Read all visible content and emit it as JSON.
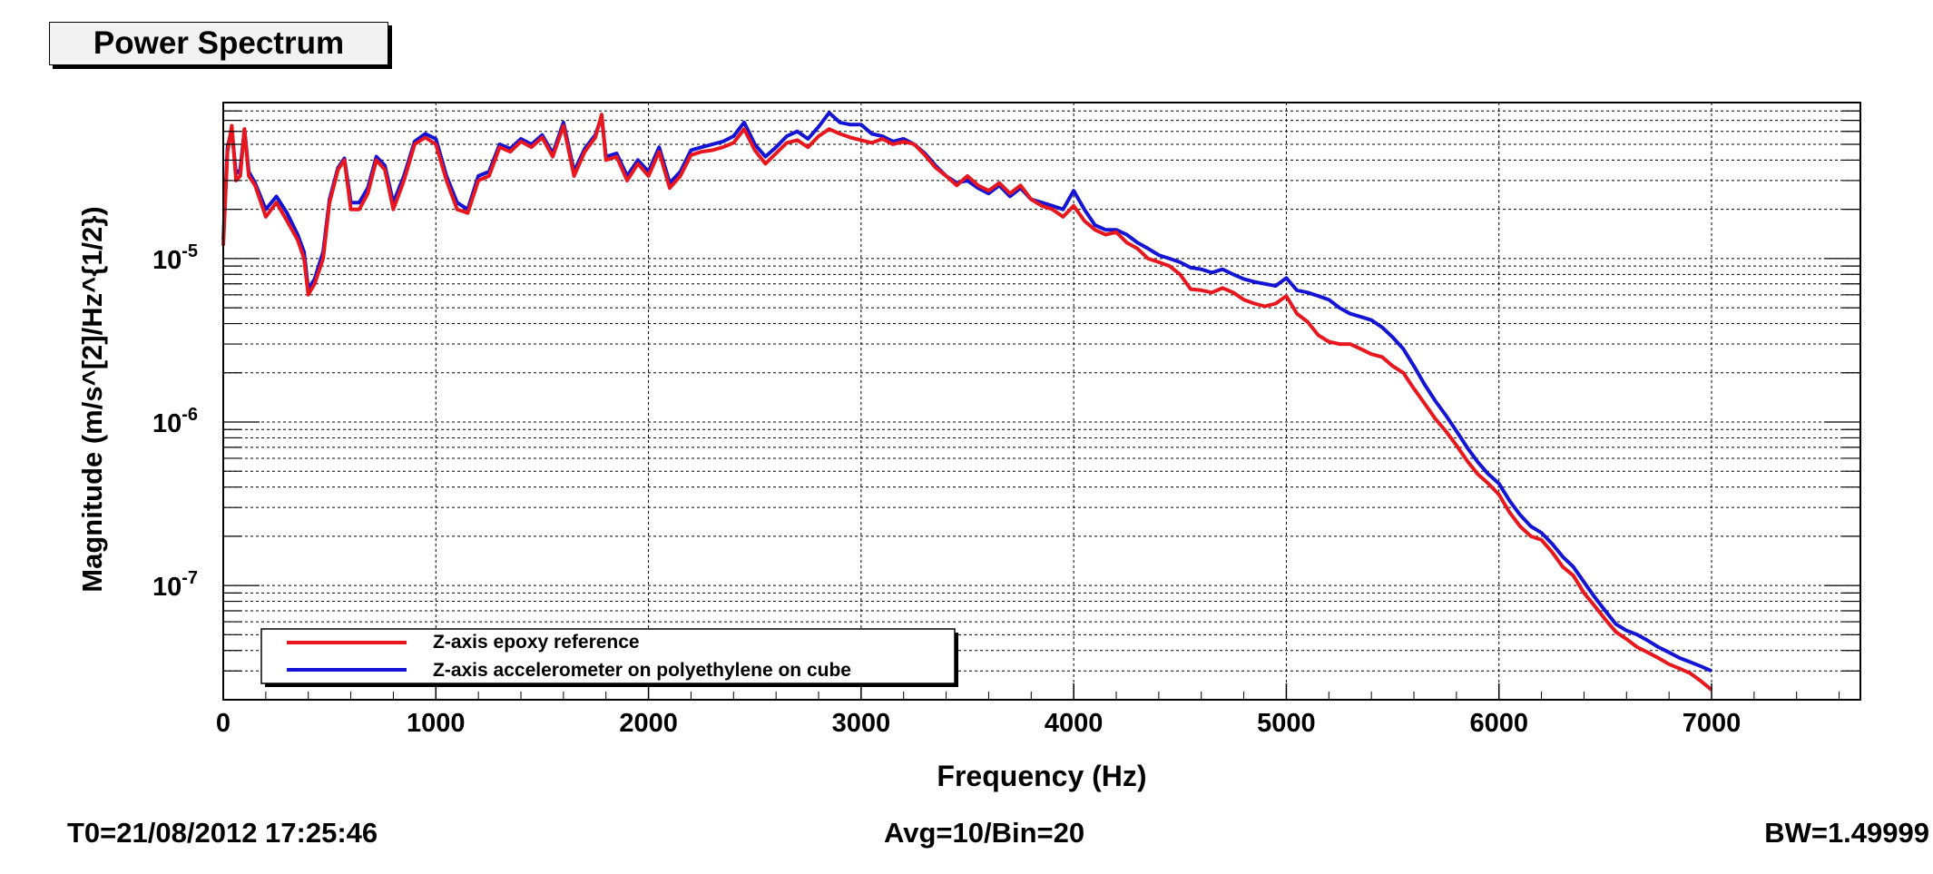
{
  "title": "Power Spectrum",
  "footer": {
    "t0": "T0=21/08/2012 17:25:46",
    "avg": "Avg=10/Bin=20",
    "bw": "BW=1.49999"
  },
  "chart_data": {
    "type": "line",
    "title": "Power Spectrum",
    "xlabel": "Frequency (Hz)",
    "ylabel": "Magnitude (m/s^[2]/Hz^{1/2})",
    "xlim": [
      0,
      7700
    ],
    "ylim": [
      2e-08,
      9e-05
    ],
    "y_scale": "log",
    "grid": true,
    "legend_position": "bottom-left",
    "x_ticks": [
      "0",
      "1000",
      "2000",
      "3000",
      "4000",
      "5000",
      "6000",
      "7000"
    ],
    "y_ticks": [
      {
        "base": "10",
        "exp": "-7",
        "value": 1e-07
      },
      {
        "base": "10",
        "exp": "-6",
        "value": 1e-06
      },
      {
        "base": "10",
        "exp": "-5",
        "value": 1e-05
      }
    ],
    "series": [
      {
        "name": "Z-axis epoxy reference",
        "color": "#e8161d",
        "points": [
          [
            0,
            1.2e-05
          ],
          [
            20,
            4.5e-05
          ],
          [
            40,
            6.5e-05
          ],
          [
            60,
            3e-05
          ],
          [
            80,
            3.2e-05
          ],
          [
            100,
            6.2e-05
          ],
          [
            120,
            3.2e-05
          ],
          [
            150,
            2.8e-05
          ],
          [
            200,
            1.8e-05
          ],
          [
            250,
            2.2e-05
          ],
          [
            300,
            1.7e-05
          ],
          [
            350,
            1.3e-05
          ],
          [
            380,
            1e-05
          ],
          [
            400,
            6e-06
          ],
          [
            430,
            7e-06
          ],
          [
            470,
            1e-05
          ],
          [
            500,
            2.2e-05
          ],
          [
            540,
            3.5e-05
          ],
          [
            570,
            4e-05
          ],
          [
            600,
            2e-05
          ],
          [
            640,
            2e-05
          ],
          [
            680,
            2.5e-05
          ],
          [
            720,
            4e-05
          ],
          [
            760,
            3.5e-05
          ],
          [
            800,
            2e-05
          ],
          [
            850,
            3e-05
          ],
          [
            900,
            5e-05
          ],
          [
            950,
            5.5e-05
          ],
          [
            1000,
            5e-05
          ],
          [
            1050,
            3e-05
          ],
          [
            1100,
            2e-05
          ],
          [
            1150,
            1.9e-05
          ],
          [
            1200,
            3e-05
          ],
          [
            1250,
            3.2e-05
          ],
          [
            1300,
            4.8e-05
          ],
          [
            1350,
            4.5e-05
          ],
          [
            1400,
            5.2e-05
          ],
          [
            1450,
            4.8e-05
          ],
          [
            1500,
            5.5e-05
          ],
          [
            1550,
            4.2e-05
          ],
          [
            1600,
            6.5e-05
          ],
          [
            1650,
            3.2e-05
          ],
          [
            1700,
            4.5e-05
          ],
          [
            1750,
            5.5e-05
          ],
          [
            1780,
            7.6e-05
          ],
          [
            1800,
            4e-05
          ],
          [
            1850,
            4.2e-05
          ],
          [
            1900,
            3e-05
          ],
          [
            1950,
            3.8e-05
          ],
          [
            2000,
            3.2e-05
          ],
          [
            2050,
            4.5e-05
          ],
          [
            2100,
            2.7e-05
          ],
          [
            2150,
            3.2e-05
          ],
          [
            2200,
            4.3e-05
          ],
          [
            2250,
            4.5e-05
          ],
          [
            2300,
            4.6e-05
          ],
          [
            2350,
            4.8e-05
          ],
          [
            2400,
            5.1e-05
          ],
          [
            2450,
            6.2e-05
          ],
          [
            2500,
            4.6e-05
          ],
          [
            2550,
            3.8e-05
          ],
          [
            2600,
            4.4e-05
          ],
          [
            2650,
            5.1e-05
          ],
          [
            2700,
            5.3e-05
          ],
          [
            2750,
            4.8e-05
          ],
          [
            2800,
            5.6e-05
          ],
          [
            2850,
            6.2e-05
          ],
          [
            2900,
            5.8e-05
          ],
          [
            2950,
            5.5e-05
          ],
          [
            3000,
            5.3e-05
          ],
          [
            3050,
            5.1e-05
          ],
          [
            3100,
            5.4e-05
          ],
          [
            3150,
            5e-05
          ],
          [
            3200,
            5.2e-05
          ],
          [
            3250,
            5e-05
          ],
          [
            3300,
            4.3e-05
          ],
          [
            3350,
            3.6e-05
          ],
          [
            3400,
            3.2e-05
          ],
          [
            3450,
            2.8e-05
          ],
          [
            3500,
            3.2e-05
          ],
          [
            3550,
            2.8e-05
          ],
          [
            3600,
            2.6e-05
          ],
          [
            3650,
            2.9e-05
          ],
          [
            3700,
            2.5e-05
          ],
          [
            3750,
            2.8e-05
          ],
          [
            3800,
            2.3e-05
          ],
          [
            3850,
            2.1e-05
          ],
          [
            3900,
            2e-05
          ],
          [
            3950,
            1.8e-05
          ],
          [
            4000,
            2.1e-05
          ],
          [
            4050,
            1.7e-05
          ],
          [
            4100,
            1.5e-05
          ],
          [
            4150,
            1.4e-05
          ],
          [
            4200,
            1.45e-05
          ],
          [
            4250,
            1.25e-05
          ],
          [
            4300,
            1.15e-05
          ],
          [
            4350,
            1e-05
          ],
          [
            4400,
            9.5e-06
          ],
          [
            4450,
            9e-06
          ],
          [
            4500,
            8e-06
          ],
          [
            4550,
            6.5e-06
          ],
          [
            4600,
            6.4e-06
          ],
          [
            4650,
            6.2e-06
          ],
          [
            4700,
            6.6e-06
          ],
          [
            4750,
            6.2e-06
          ],
          [
            4800,
            5.6e-06
          ],
          [
            4850,
            5.3e-06
          ],
          [
            4900,
            5.1e-06
          ],
          [
            4950,
            5.3e-06
          ],
          [
            5000,
            5.9e-06
          ],
          [
            5050,
            4.6e-06
          ],
          [
            5100,
            4.1e-06
          ],
          [
            5150,
            3.4e-06
          ],
          [
            5200,
            3.1e-06
          ],
          [
            5250,
            3e-06
          ],
          [
            5300,
            3e-06
          ],
          [
            5350,
            2.8e-06
          ],
          [
            5400,
            2.6e-06
          ],
          [
            5450,
            2.5e-06
          ],
          [
            5500,
            2.2e-06
          ],
          [
            5550,
            2e-06
          ],
          [
            5600,
            1.6e-06
          ],
          [
            5650,
            1.3e-06
          ],
          [
            5700,
            1.05e-06
          ],
          [
            5750,
            8.8e-07
          ],
          [
            5800,
            7.2e-07
          ],
          [
            5850,
            5.8e-07
          ],
          [
            5900,
            4.8e-07
          ],
          [
            5950,
            4.2e-07
          ],
          [
            6000,
            3.6e-07
          ],
          [
            6050,
            2.8e-07
          ],
          [
            6100,
            2.3e-07
          ],
          [
            6150,
            2e-07
          ],
          [
            6200,
            1.9e-07
          ],
          [
            6250,
            1.6e-07
          ],
          [
            6300,
            1.3e-07
          ],
          [
            6350,
            1.15e-07
          ],
          [
            6400,
            9e-08
          ],
          [
            6450,
            7.5e-08
          ],
          [
            6500,
            6.2e-08
          ],
          [
            6550,
            5.2e-08
          ],
          [
            6600,
            4.7e-08
          ],
          [
            6650,
            4.2e-08
          ],
          [
            6700,
            3.9e-08
          ],
          [
            6750,
            3.6e-08
          ],
          [
            6800,
            3.3e-08
          ],
          [
            6850,
            3.1e-08
          ],
          [
            6900,
            2.9e-08
          ],
          [
            6950,
            2.6e-08
          ],
          [
            7000,
            2.3e-08
          ]
        ]
      },
      {
        "name": "Z-axis accelerometer on polyethylene on cube",
        "color": "#1414d4",
        "points": [
          [
            0,
            1.3e-05
          ],
          [
            20,
            4.8e-05
          ],
          [
            40,
            6.2e-05
          ],
          [
            60,
            3.3e-05
          ],
          [
            80,
            3.5e-05
          ],
          [
            100,
            6.2e-05
          ],
          [
            120,
            3.4e-05
          ],
          [
            150,
            2.9e-05
          ],
          [
            200,
            2e-05
          ],
          [
            250,
            2.4e-05
          ],
          [
            300,
            1.9e-05
          ],
          [
            350,
            1.4e-05
          ],
          [
            380,
            1.1e-05
          ],
          [
            400,
            6.5e-06
          ],
          [
            430,
            7.5e-06
          ],
          [
            470,
            1.1e-05
          ],
          [
            500,
            2.3e-05
          ],
          [
            540,
            3.6e-05
          ],
          [
            570,
            4.1e-05
          ],
          [
            600,
            2.2e-05
          ],
          [
            640,
            2.2e-05
          ],
          [
            680,
            2.7e-05
          ],
          [
            720,
            4.2e-05
          ],
          [
            760,
            3.7e-05
          ],
          [
            800,
            2.2e-05
          ],
          [
            850,
            3.2e-05
          ],
          [
            900,
            5.2e-05
          ],
          [
            950,
            5.8e-05
          ],
          [
            1000,
            5.4e-05
          ],
          [
            1050,
            3.2e-05
          ],
          [
            1100,
            2.2e-05
          ],
          [
            1150,
            2e-05
          ],
          [
            1200,
            3.2e-05
          ],
          [
            1250,
            3.4e-05
          ],
          [
            1300,
            5e-05
          ],
          [
            1350,
            4.7e-05
          ],
          [
            1400,
            5.4e-05
          ],
          [
            1450,
            5e-05
          ],
          [
            1500,
            5.7e-05
          ],
          [
            1550,
            4.4e-05
          ],
          [
            1600,
            6.8e-05
          ],
          [
            1650,
            3.4e-05
          ],
          [
            1700,
            4.7e-05
          ],
          [
            1750,
            5.7e-05
          ],
          [
            1780,
            7.4e-05
          ],
          [
            1800,
            4.2e-05
          ],
          [
            1850,
            4.4e-05
          ],
          [
            1900,
            3.2e-05
          ],
          [
            1950,
            4e-05
          ],
          [
            2000,
            3.4e-05
          ],
          [
            2050,
            4.8e-05
          ],
          [
            2100,
            2.9e-05
          ],
          [
            2150,
            3.4e-05
          ],
          [
            2200,
            4.6e-05
          ],
          [
            2250,
            4.8e-05
          ],
          [
            2300,
            5e-05
          ],
          [
            2350,
            5.2e-05
          ],
          [
            2400,
            5.6e-05
          ],
          [
            2450,
            6.8e-05
          ],
          [
            2500,
            5e-05
          ],
          [
            2550,
            4.2e-05
          ],
          [
            2600,
            4.8e-05
          ],
          [
            2650,
            5.6e-05
          ],
          [
            2700,
            6e-05
          ],
          [
            2750,
            5.4e-05
          ],
          [
            2800,
            6.4e-05
          ],
          [
            2850,
            7.8e-05
          ],
          [
            2900,
            6.8e-05
          ],
          [
            2950,
            6.6e-05
          ],
          [
            3000,
            6.6e-05
          ],
          [
            3050,
            5.8e-05
          ],
          [
            3100,
            5.6e-05
          ],
          [
            3150,
            5.2e-05
          ],
          [
            3200,
            5.4e-05
          ],
          [
            3250,
            5e-05
          ],
          [
            3300,
            4.4e-05
          ],
          [
            3350,
            3.7e-05
          ],
          [
            3400,
            3.2e-05
          ],
          [
            3450,
            2.9e-05
          ],
          [
            3500,
            3e-05
          ],
          [
            3550,
            2.7e-05
          ],
          [
            3600,
            2.5e-05
          ],
          [
            3650,
            2.8e-05
          ],
          [
            3700,
            2.4e-05
          ],
          [
            3750,
            2.7e-05
          ],
          [
            3800,
            2.3e-05
          ],
          [
            3850,
            2.2e-05
          ],
          [
            3900,
            2.1e-05
          ],
          [
            3950,
            2e-05
          ],
          [
            4000,
            2.6e-05
          ],
          [
            4050,
            2e-05
          ],
          [
            4100,
            1.6e-05
          ],
          [
            4150,
            1.5e-05
          ],
          [
            4200,
            1.5e-05
          ],
          [
            4250,
            1.4e-05
          ],
          [
            4300,
            1.25e-05
          ],
          [
            4350,
            1.15e-05
          ],
          [
            4400,
            1.05e-05
          ],
          [
            4450,
            1e-05
          ],
          [
            4500,
            9.5e-06
          ],
          [
            4550,
            8.8e-06
          ],
          [
            4600,
            8.6e-06
          ],
          [
            4650,
            8.2e-06
          ],
          [
            4700,
            8.6e-06
          ],
          [
            4750,
            8e-06
          ],
          [
            4800,
            7.5e-06
          ],
          [
            4850,
            7.2e-06
          ],
          [
            4900,
            7e-06
          ],
          [
            4950,
            6.8e-06
          ],
          [
            5000,
            7.6e-06
          ],
          [
            5050,
            6.4e-06
          ],
          [
            5100,
            6.2e-06
          ],
          [
            5150,
            5.9e-06
          ],
          [
            5200,
            5.6e-06
          ],
          [
            5250,
            5e-06
          ],
          [
            5300,
            4.6e-06
          ],
          [
            5350,
            4.4e-06
          ],
          [
            5400,
            4.2e-06
          ],
          [
            5450,
            3.8e-06
          ],
          [
            5500,
            3.3e-06
          ],
          [
            5550,
            2.8e-06
          ],
          [
            5600,
            2.2e-06
          ],
          [
            5650,
            1.7e-06
          ],
          [
            5700,
            1.35e-06
          ],
          [
            5750,
            1.1e-06
          ],
          [
            5800,
            8.8e-07
          ],
          [
            5850,
            7e-07
          ],
          [
            5900,
            5.7e-07
          ],
          [
            5950,
            4.8e-07
          ],
          [
            6000,
            4.2e-07
          ],
          [
            6050,
            3.3e-07
          ],
          [
            6100,
            2.7e-07
          ],
          [
            6150,
            2.3e-07
          ],
          [
            6200,
            2.1e-07
          ],
          [
            6250,
            1.8e-07
          ],
          [
            6300,
            1.5e-07
          ],
          [
            6350,
            1.3e-07
          ],
          [
            6400,
            1.05e-07
          ],
          [
            6450,
            8.5e-08
          ],
          [
            6500,
            7e-08
          ],
          [
            6550,
            5.8e-08
          ],
          [
            6600,
            5.3e-08
          ],
          [
            6650,
            5e-08
          ],
          [
            6700,
            4.6e-08
          ],
          [
            6750,
            4.2e-08
          ],
          [
            6800,
            3.9e-08
          ],
          [
            6850,
            3.6e-08
          ],
          [
            6900,
            3.4e-08
          ],
          [
            6950,
            3.2e-08
          ],
          [
            7000,
            3e-08
          ]
        ]
      }
    ]
  }
}
